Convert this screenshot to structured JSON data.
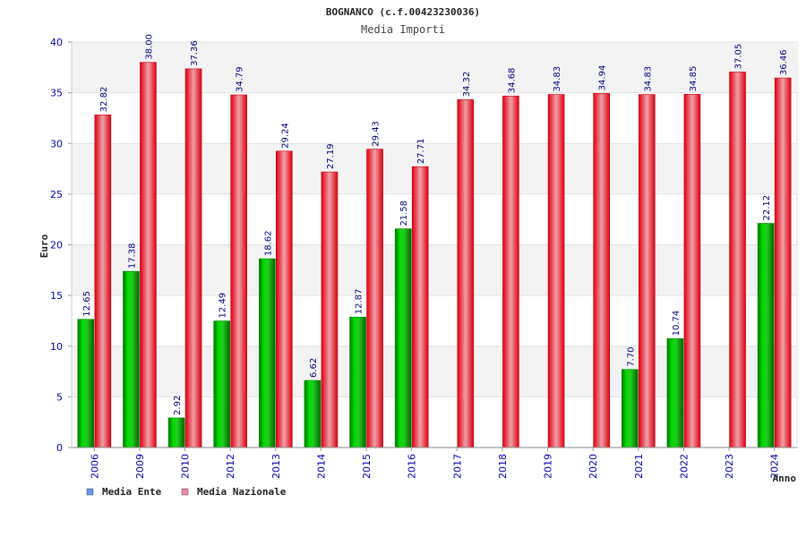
{
  "chart_data": {
    "type": "bar",
    "title": "BOGNANCO (c.f.00423230036)",
    "subtitle": "Media Importi",
    "ylabel": "Euro",
    "xlabel": "Anno",
    "ylim": [
      0,
      40
    ],
    "yticks": [
      0,
      5,
      10,
      15,
      20,
      25,
      30,
      35,
      40
    ],
    "grid": true,
    "legend_position": "bottom-left",
    "categories": [
      "2006",
      "2009",
      "2010",
      "2012",
      "2013",
      "2014",
      "2015",
      "2016",
      "2017",
      "2018",
      "2019",
      "2020",
      "2021",
      "2022",
      "2023",
      "2024"
    ],
    "series": [
      {
        "name": "Media Ente",
        "legend_color": "#6699ee",
        "bar_color": "#00bb00",
        "values": [
          12.65,
          17.38,
          2.92,
          12.49,
          18.62,
          6.62,
          12.87,
          21.58,
          null,
          null,
          null,
          null,
          7.7,
          10.74,
          null,
          22.12
        ],
        "labels": [
          "12.65",
          "17.38",
          "2.92",
          "12.49",
          "18.62",
          "6.62",
          "12.87",
          "21.58",
          null,
          null,
          null,
          null,
          "7.70",
          "10.74",
          null,
          "22.12"
        ]
      },
      {
        "name": "Media Nazionale",
        "legend_color": "#ee88aa",
        "bar_color": "#ee1122",
        "values": [
          32.82,
          38.0,
          37.36,
          34.79,
          29.24,
          27.19,
          29.43,
          27.71,
          34.32,
          34.68,
          34.83,
          34.94,
          34.83,
          34.85,
          37.05,
          36.46
        ],
        "labels": [
          "32.82",
          "38.00",
          "37.36",
          "34.79",
          "29.24",
          "27.19",
          "29.43",
          "27.71",
          "34.32",
          "34.68",
          "34.83",
          "34.94",
          "34.83",
          "34.85",
          "37.05",
          "36.46"
        ]
      }
    ]
  }
}
